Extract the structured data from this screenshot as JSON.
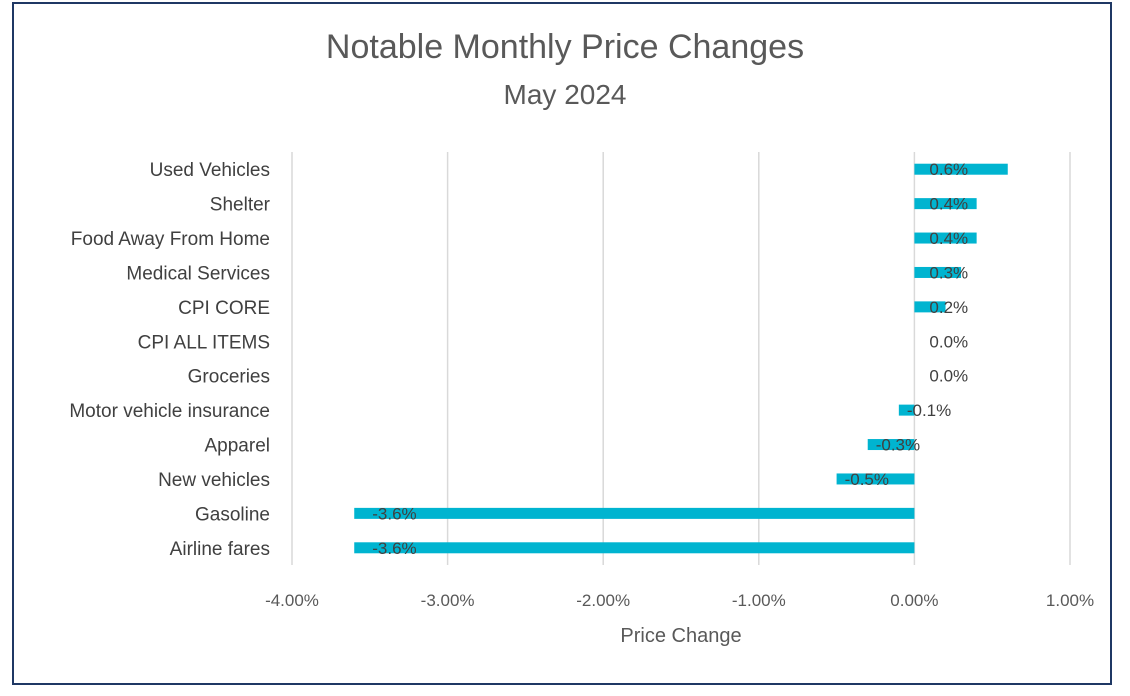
{
  "chart_data": {
    "type": "bar",
    "orientation": "horizontal",
    "title": "Notable Monthly Price Changes",
    "subtitle": "May 2024",
    "xlabel": "Price Change",
    "ylabel": "",
    "xlim": [
      -4.0,
      1.0
    ],
    "x_ticks": [
      -4.0,
      -3.0,
      -2.0,
      -1.0,
      0.0,
      1.0
    ],
    "x_tick_labels": [
      "-4.00%",
      "-3.00%",
      "-2.00%",
      "-1.00%",
      "0.00%",
      "1.00%"
    ],
    "grid": true,
    "legend": "none",
    "bar_color": "#00b4d0",
    "categories": [
      "Used Vehicles",
      "Shelter",
      "Food Away From Home",
      "Medical Services",
      "CPI CORE",
      "CPI ALL ITEMS",
      "Groceries",
      "Motor vehicle insurance",
      "Apparel",
      "New vehicles",
      "Gasoline",
      "Airline fares"
    ],
    "values": [
      0.6,
      0.4,
      0.4,
      0.3,
      0.2,
      0.0,
      0.0,
      -0.1,
      -0.3,
      -0.5,
      -3.6,
      -3.6
    ],
    "data_labels": [
      "0.6%",
      "0.4%",
      "0.4%",
      "0.3%",
      "0.2%",
      "0.0%",
      "0.0%",
      "-0.1%",
      "-0.3%",
      "-0.5%",
      "-3.6%",
      "-3.6%"
    ]
  }
}
